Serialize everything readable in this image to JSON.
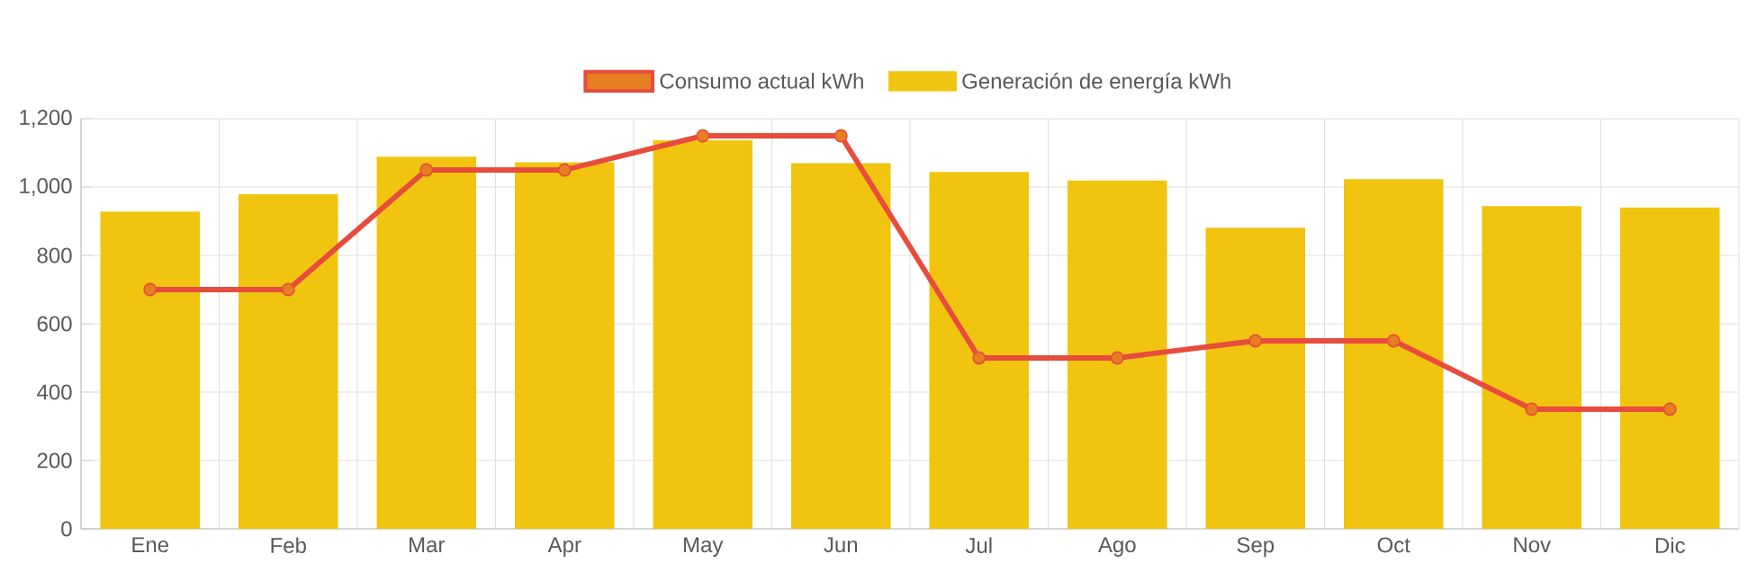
{
  "chart_data": {
    "type": "bar",
    "categories": [
      "Ene",
      "Feb",
      "Mar",
      "Apr",
      "May",
      "Jun",
      "Jul",
      "Ago",
      "Sep",
      "Oct",
      "Nov",
      "Dic"
    ],
    "series": [
      {
        "name": "Consumo actual kWh",
        "type": "line",
        "color": "#e74c3c",
        "marker": "circle",
        "values": [
          700,
          700,
          1050,
          1050,
          1150,
          1150,
          500,
          500,
          550,
          550,
          350,
          350
        ]
      },
      {
        "name": "Generación de energía kWh",
        "color": "#f1c40f",
        "values": [
          928,
          979,
          1089,
          1072,
          1137,
          1070,
          1044,
          1019,
          881,
          1023,
          944,
          940
        ]
      }
    ],
    "ylim": [
      0,
      1200
    ],
    "yticks": [
      0,
      {
        "value": 200,
        "label": "200"
      },
      {
        "value": 400,
        "label": "400"
      },
      {
        "value": 600,
        "label": "600"
      },
      {
        "value": 800,
        "label": "800"
      },
      {
        "value": 1000,
        "label": "1,000"
      },
      {
        "value": 1200,
        "label": "1,200"
      }
    ],
    "grid": true,
    "legend": "top"
  }
}
